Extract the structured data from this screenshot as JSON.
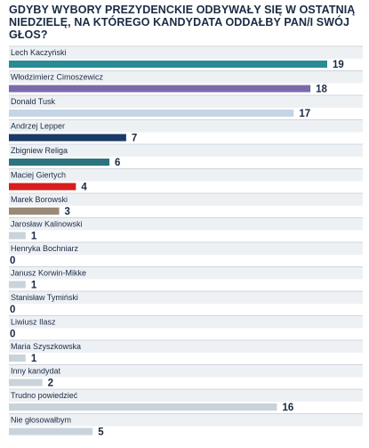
{
  "chart_data": {
    "type": "bar",
    "orientation": "horizontal",
    "title": "GDYBY WYBORY PREZYDENCKIE ODBYWAŁY SIĘ W OSTATNIĄ NIEDZIELĘ, NA KTÓREGO KANDYDATA ODDAŁBY PAN/I SWÓJ GŁOS?",
    "xlim": [
      0,
      19
    ],
    "grid": false,
    "legend": "none",
    "categories": [
      "Lech Kaczyński",
      "Włodzimierz Cimoszewicz",
      "Donald Tusk",
      "Andrzej Lepper",
      "Zbigniew Religa",
      "Maciej Giertych",
      "Marek Borowski",
      "Jarosław Kalinowski",
      "Henryka Bochniarz",
      "Janusz Korwin-Mikke",
      "Stanisław Tymiński",
      "Liwiusz Ilasz",
      "Maria Szyszkowska",
      "Inny kandydat",
      "Trudno powiedzieć",
      "Nie głosowałbym"
    ],
    "values": [
      19,
      18,
      17,
      7,
      6,
      4,
      3,
      1,
      0,
      1,
      0,
      0,
      1,
      2,
      16,
      5
    ],
    "value_labels": [
      "19",
      "18",
      "17",
      "7",
      "6",
      "4",
      "3",
      "1",
      "0",
      "1",
      "0",
      "0",
      "1",
      "2",
      "16",
      "5"
    ],
    "colors": [
      "#2a8a96",
      "#7a6aaa",
      "#c5d5e6",
      "#1a3a66",
      "#2d7480",
      "#d61e1e",
      "#9a8a78",
      "#c9d3dc",
      "#c9d3dc",
      "#c9d3dc",
      "#c9d3dc",
      "#c9d3dc",
      "#c9d3dc",
      "#c9d3dc",
      "#c9d3dc",
      "#c9d3dc"
    ],
    "separator_color": "#cfd6de",
    "row_background": "#eef1f4"
  }
}
